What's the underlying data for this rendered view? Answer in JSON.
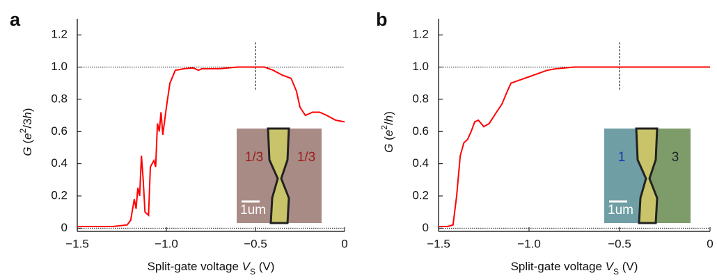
{
  "chart_data": [
    {
      "type": "line",
      "panel_label": "a",
      "xlabel": [
        "Split-gate voltage ",
        "V",
        "S",
        " (V)"
      ],
      "ylabel": [
        "G",
        " (",
        "e",
        "2",
        "/3",
        "h",
        ")"
      ],
      "x": [
        -1.5,
        -1.3,
        -1.22,
        -1.2,
        -1.18,
        -1.17,
        -1.16,
        -1.15,
        -1.14,
        -1.13,
        -1.12,
        -1.1,
        -1.09,
        -1.07,
        -1.06,
        -1.05,
        -1.04,
        -1.03,
        -1.02,
        -1.0,
        -0.98,
        -0.95,
        -0.9,
        -0.85,
        -0.82,
        -0.8,
        -0.7,
        -0.6,
        -0.5,
        -0.45,
        -0.4,
        -0.35,
        -0.3,
        -0.27,
        -0.25,
        -0.22,
        -0.18,
        -0.14,
        -0.1,
        -0.05,
        0
      ],
      "values": [
        0.01,
        0.01,
        0.02,
        0.05,
        0.18,
        0.12,
        0.25,
        0.2,
        0.45,
        0.3,
        0.1,
        0.08,
        0.38,
        0.42,
        0.38,
        0.65,
        0.6,
        0.72,
        0.58,
        0.75,
        0.9,
        0.98,
        0.99,
        0.995,
        0.98,
        0.99,
        0.99,
        1.0,
        1.0,
        1.0,
        0.98,
        0.95,
        0.93,
        0.85,
        0.75,
        0.7,
        0.72,
        0.72,
        0.7,
        0.67,
        0.66
      ],
      "color": "#ff0000",
      "xlim": [
        -1.5,
        0
      ],
      "ylim": [
        -0.02,
        1.3
      ],
      "xticks": [
        {
          "value": -1.5,
          "label": "−1.5"
        },
        {
          "value": -1.0,
          "label": "−1.0"
        },
        {
          "value": -0.5,
          "label": "−0.5"
        },
        0
      ],
      "yticks": [
        0,
        0.2,
        0.4,
        0.6,
        0.8,
        {
          "value": 1.0,
          "label": "1.0"
        },
        1.2
      ],
      "hlines": [
        0,
        1.0
      ],
      "vline": {
        "x": -0.5,
        "ymin": 0.86,
        "ymax": 1.16
      },
      "inset": {
        "left": "1/3",
        "right": "1/3",
        "scale_bar": "1um"
      }
    },
    {
      "type": "line",
      "panel_label": "b",
      "xlabel": [
        "Split-gate voltage ",
        "V",
        "S",
        " (V)"
      ],
      "ylabel": [
        "G",
        " (",
        "e",
        "2",
        "/",
        "h",
        ")"
      ],
      "x": [
        -1.5,
        -1.45,
        -1.42,
        -1.4,
        -1.38,
        -1.36,
        -1.34,
        -1.32,
        -1.3,
        -1.28,
        -1.25,
        -1.22,
        -1.18,
        -1.15,
        -1.12,
        -1.1,
        -1.05,
        -1.0,
        -0.95,
        -0.9,
        -0.85,
        -0.75,
        -0.5,
        -0.25,
        0
      ],
      "values": [
        0.01,
        0.01,
        0.02,
        0.2,
        0.45,
        0.53,
        0.55,
        0.6,
        0.66,
        0.67,
        0.63,
        0.65,
        0.72,
        0.77,
        0.85,
        0.9,
        0.92,
        0.94,
        0.96,
        0.98,
        0.99,
        1.0,
        1.0,
        1.0,
        1.0
      ],
      "color": "#ff0000",
      "xlim": [
        -1.5,
        0
      ],
      "ylim": [
        -0.02,
        1.3
      ],
      "xticks": [
        {
          "value": -1.5,
          "label": "−1.5"
        },
        {
          "value": -1.0,
          "label": "−1.0"
        },
        {
          "value": -0.5,
          "label": "−0.5"
        },
        0
      ],
      "yticks": [
        0,
        0.2,
        0.4,
        0.6,
        0.8,
        {
          "value": 1.0,
          "label": "1.0"
        },
        1.2
      ],
      "hlines": [
        0,
        1.0
      ],
      "vline": {
        "x": -0.5,
        "ymin": 0.86,
        "ymax": 1.16
      },
      "inset": {
        "left": "1",
        "right": "3",
        "scale_bar": "1um"
      }
    }
  ]
}
